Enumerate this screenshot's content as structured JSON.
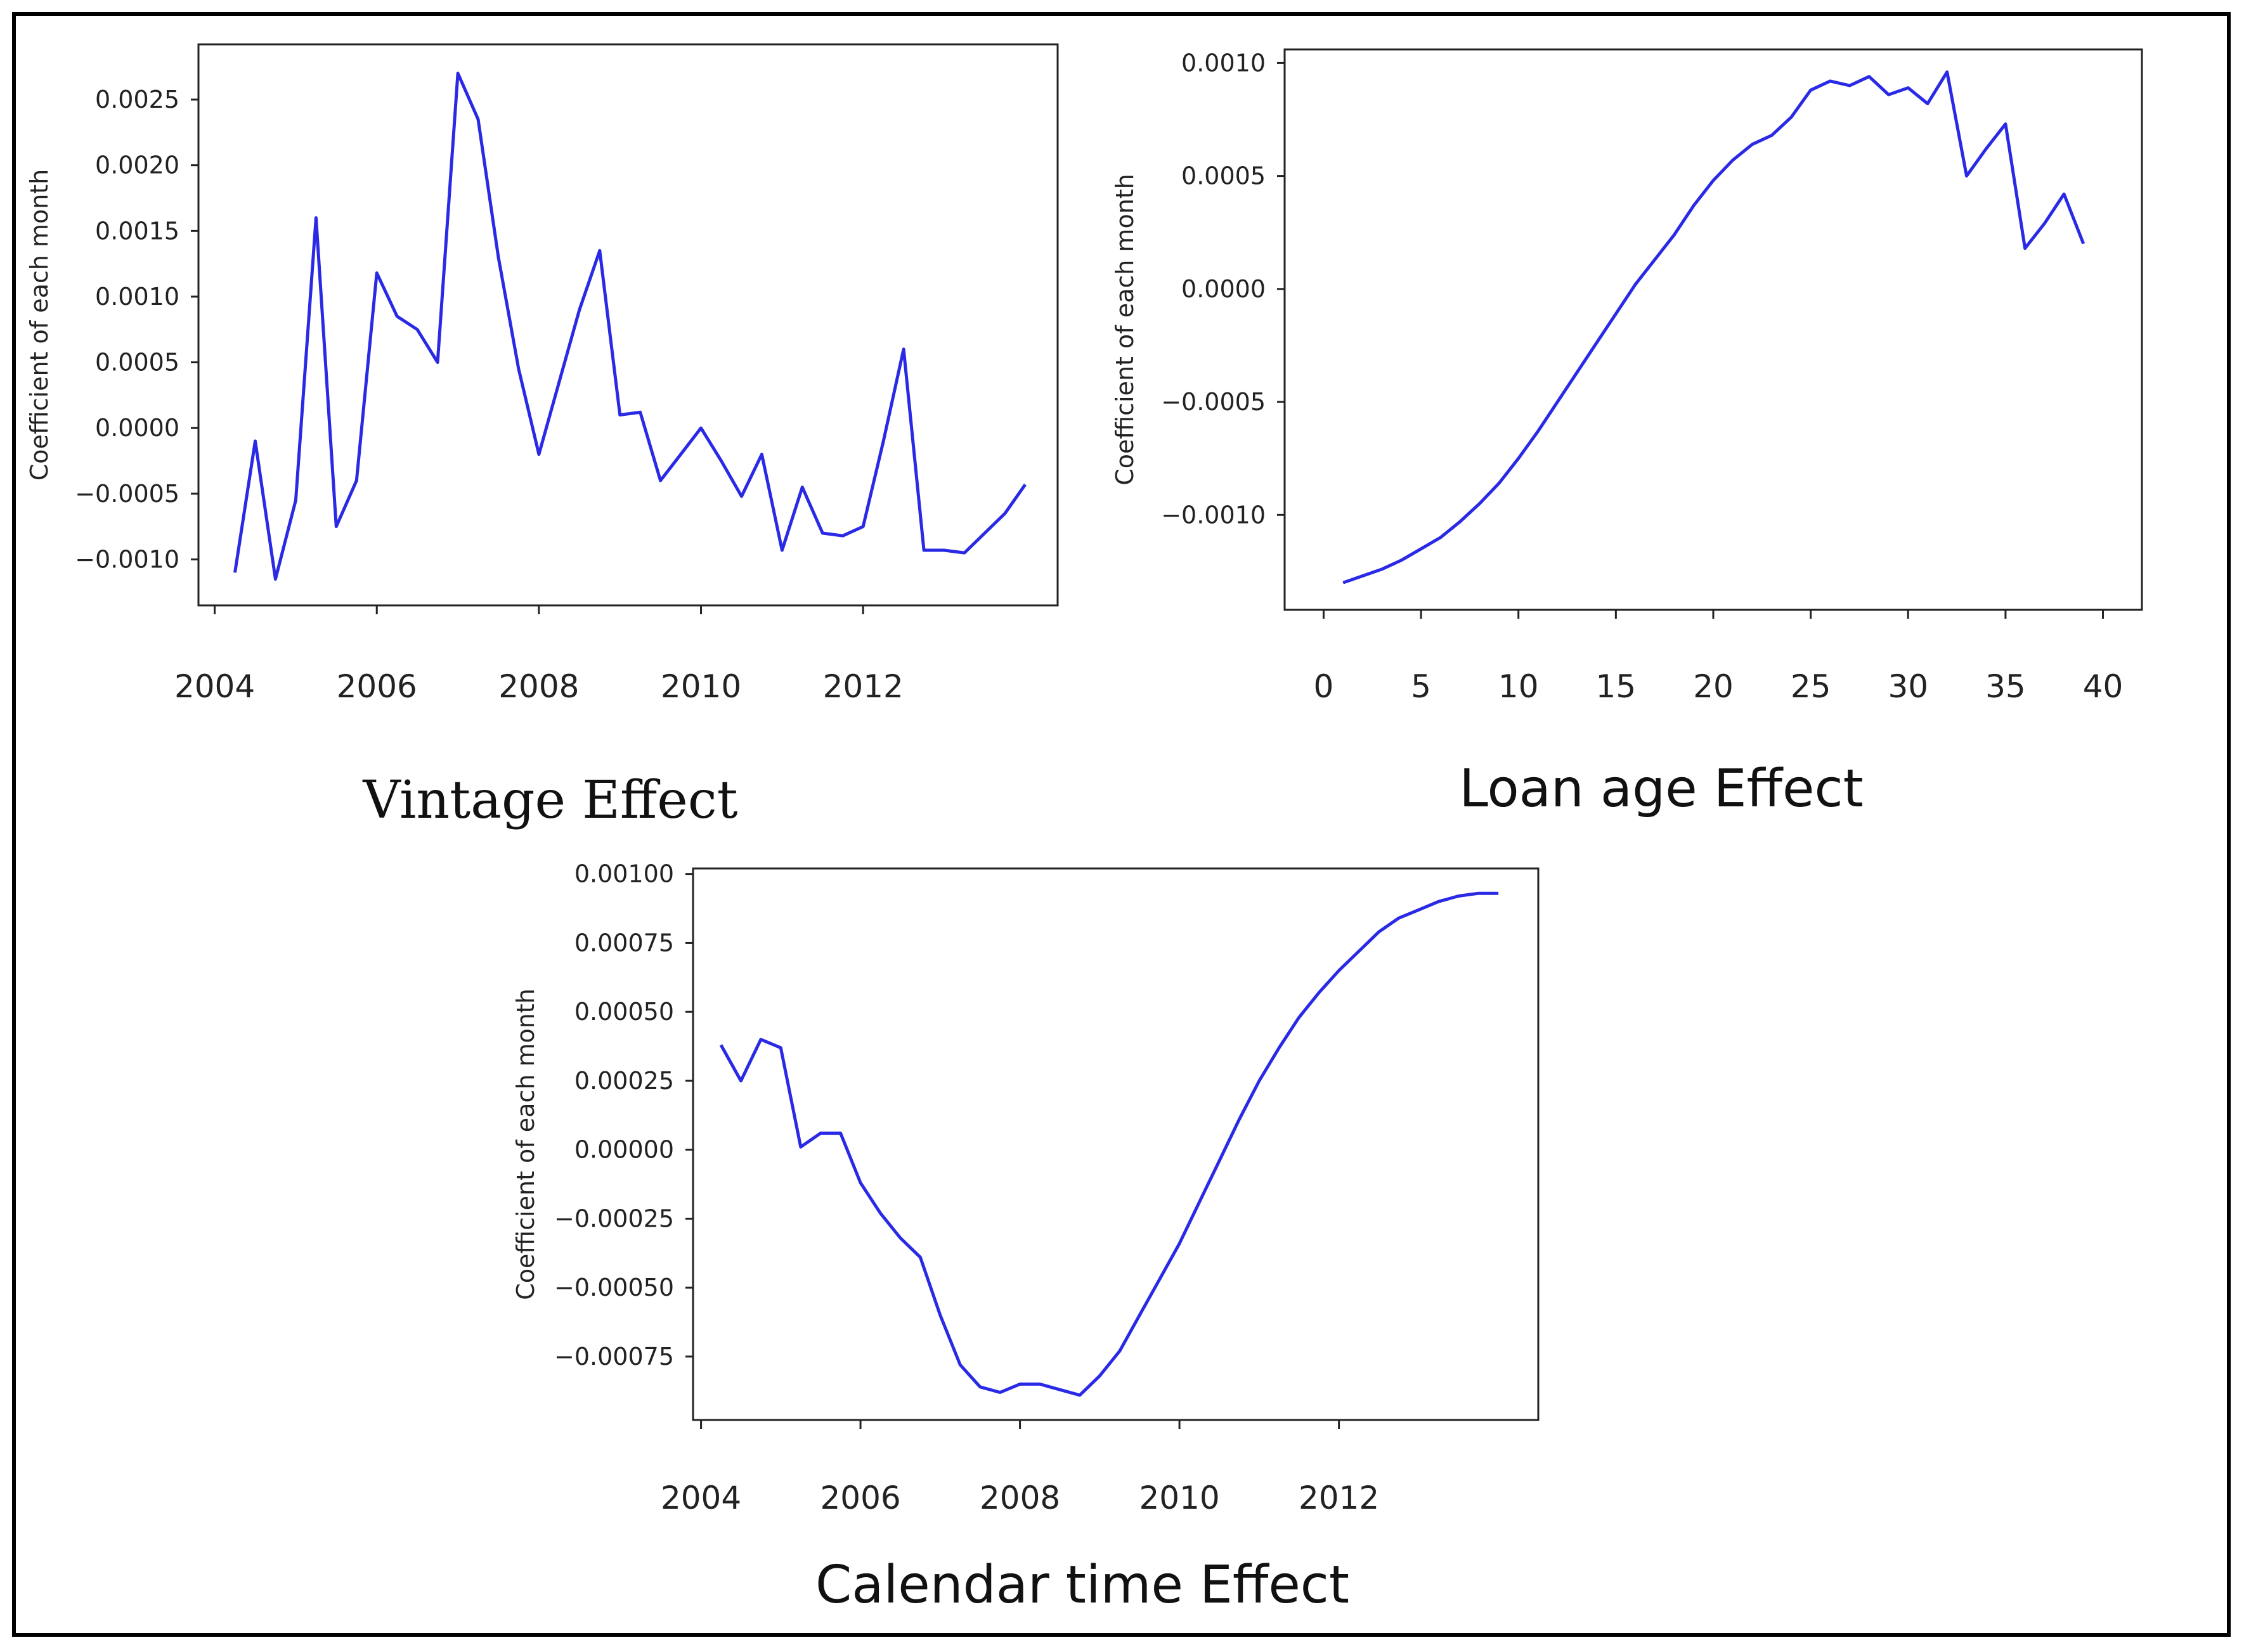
{
  "colors": {
    "line": "#2a2ae6",
    "frame": "#000000",
    "axes": "#222222"
  },
  "chart_data": [
    {
      "type": "line",
      "title": "Vintage Effect",
      "xlabel": "",
      "ylabel": "Coefficient of each month",
      "xlim": [
        2003.8,
        2014.4
      ],
      "ylim": [
        -0.00135,
        0.00292
      ],
      "x_ticks": [
        2004,
        2006,
        2008,
        2010,
        2012
      ],
      "x_tick_labels": [
        "2004",
        "2006",
        "2008",
        "2010",
        "2012"
      ],
      "y_ticks": [
        -0.001,
        -0.0005,
        0.0,
        0.0005,
        0.001,
        0.0015,
        0.002,
        0.0025
      ],
      "y_tick_labels": [
        "−0.0010",
        "−0.0005",
        "0.0000",
        "0.0005",
        "0.0010",
        "0.0015",
        "0.0020",
        "0.0025"
      ],
      "grid": false,
      "series": [
        {
          "x": [
            2004.25,
            2004.5,
            2004.75,
            2005.0,
            2005.25,
            2005.5,
            2005.75,
            2006.0,
            2006.25,
            2006.5,
            2006.75,
            2007.0,
            2007.25,
            2007.5,
            2007.75,
            2008.0,
            2008.25,
            2008.5,
            2008.75,
            2009.0,
            2009.25,
            2009.5,
            2009.75,
            2010.0,
            2010.25,
            2010.5,
            2010.75,
            2011.0,
            2011.25,
            2011.5,
            2011.75,
            2012.0,
            2012.25,
            2012.5,
            2012.75,
            2013.0,
            2013.25,
            2013.5,
            2013.75,
            2014.0
          ],
          "y": [
            -0.0011,
            -0.0001,
            -0.00115,
            -0.00055,
            0.0016,
            -0.00075,
            -0.0004,
            0.00118,
            0.00085,
            0.00075,
            0.0005,
            0.0027,
            0.00235,
            0.0013,
            0.00045,
            -0.0002,
            0.00035,
            0.0009,
            0.00135,
            0.0001,
            0.00012,
            -0.0004,
            -0.0002,
            0.0,
            -0.00025,
            -0.00052,
            -0.0002,
            -0.00093,
            -0.00045,
            -0.0008,
            -0.00082,
            -0.00075,
            -0.0001,
            0.0006,
            -0.00093,
            -0.00093,
            -0.00095,
            -0.0008,
            -0.00065,
            -0.00043
          ]
        }
      ]
    },
    {
      "type": "line",
      "title": "Loan age Effect",
      "xlabel": "",
      "ylabel": "Coefficient of each month",
      "xlim": [
        -2,
        42
      ],
      "ylim": [
        -0.00142,
        0.00106
      ],
      "x_ticks": [
        0,
        5,
        10,
        15,
        20,
        25,
        30,
        35,
        40
      ],
      "x_tick_labels": [
        "0",
        "5",
        "10",
        "15",
        "20",
        "25",
        "30",
        "35",
        "40"
      ],
      "y_ticks": [
        -0.001,
        -0.0005,
        0.0,
        0.0005,
        0.001
      ],
      "y_tick_labels": [
        "−0.0010",
        "−0.0005",
        "0.0000",
        "0.0005",
        "0.0010"
      ],
      "grid": false,
      "series": [
        {
          "x": [
            1,
            2,
            3,
            4,
            5,
            6,
            7,
            8,
            9,
            10,
            11,
            12,
            13,
            14,
            15,
            16,
            17,
            18,
            19,
            20,
            21,
            22,
            23,
            24,
            25,
            26,
            27,
            28,
            29,
            30,
            31,
            32,
            33,
            34,
            35,
            36,
            37,
            38,
            39,
            40
          ],
          "y": [
            -0.0013,
            -0.00127,
            -0.00124,
            -0.0012,
            -0.00115,
            -0.0011,
            -0.00103,
            -0.00095,
            -0.00086,
            -0.00075,
            -0.00063,
            -0.0005,
            -0.00037,
            -0.00024,
            -0.00011,
            2e-05,
            0.00013,
            0.00024,
            0.00037,
            0.00048,
            0.00057,
            0.00064,
            0.00068,
            0.00076,
            0.00088,
            0.00092,
            0.0009,
            0.00094,
            0.00086,
            0.00089,
            0.00082,
            0.00096,
            0.0005,
            0.00062,
            0.00073,
            0.00018,
            0.00029,
            0.00042,
            0.0002,
            null
          ],
          "note_null_means": ""
        }
      ]
    },
    {
      "type": "line",
      "title": "Calendar time Effect",
      "xlabel": "",
      "ylabel": "Coefficient of each month",
      "xlim": [
        2003.9,
        2014.5
      ],
      "ylim": [
        -0.00098,
        0.00102
      ],
      "x_ticks": [
        2004,
        2006,
        2008,
        2010,
        2012
      ],
      "x_tick_labels": [
        "2004",
        "2006",
        "2008",
        "2010",
        "2012"
      ],
      "y_ticks": [
        -0.00075,
        -0.0005,
        -0.00025,
        0.0,
        0.00025,
        0.0005,
        0.00075,
        0.001
      ],
      "y_tick_labels": [
        "−0.00075",
        "−0.00050",
        "−0.00025",
        "0.00000",
        "0.00025",
        "0.00050",
        "0.00075",
        "0.00100"
      ],
      "grid": false,
      "series": [
        {
          "x": [
            2004.25,
            2004.5,
            2004.75,
            2005.0,
            2005.25,
            2005.5,
            2005.75,
            2006.0,
            2006.25,
            2006.5,
            2006.75,
            2007.0,
            2007.25,
            2007.5,
            2007.75,
            2008.0,
            2008.25,
            2008.5,
            2008.75,
            2009.0,
            2009.25,
            2009.5,
            2009.75,
            2010.0,
            2010.25,
            2010.5,
            2010.75,
            2011.0,
            2011.25,
            2011.5,
            2011.75,
            2012.0,
            2012.25,
            2012.5,
            2012.75,
            2013.0,
            2013.25,
            2013.5,
            2013.75,
            2014.0
          ],
          "y": [
            0.00038,
            0.00025,
            0.0004,
            0.00037,
            1e-05,
            6e-05,
            6e-05,
            -0.00012,
            -0.00023,
            -0.00032,
            -0.00039,
            -0.0006,
            -0.00078,
            -0.00086,
            -0.00088,
            -0.00085,
            -0.00085,
            -0.00087,
            -0.00089,
            -0.00082,
            -0.00073,
            -0.0006,
            -0.00047,
            -0.00034,
            -0.00019,
            -4e-05,
            0.00011,
            0.00025,
            0.00037,
            0.00048,
            0.00057,
            0.00065,
            0.00072,
            0.00079,
            0.00084,
            0.00087,
            0.0009,
            0.00092,
            0.00093,
            0.00093
          ]
        }
      ]
    }
  ]
}
